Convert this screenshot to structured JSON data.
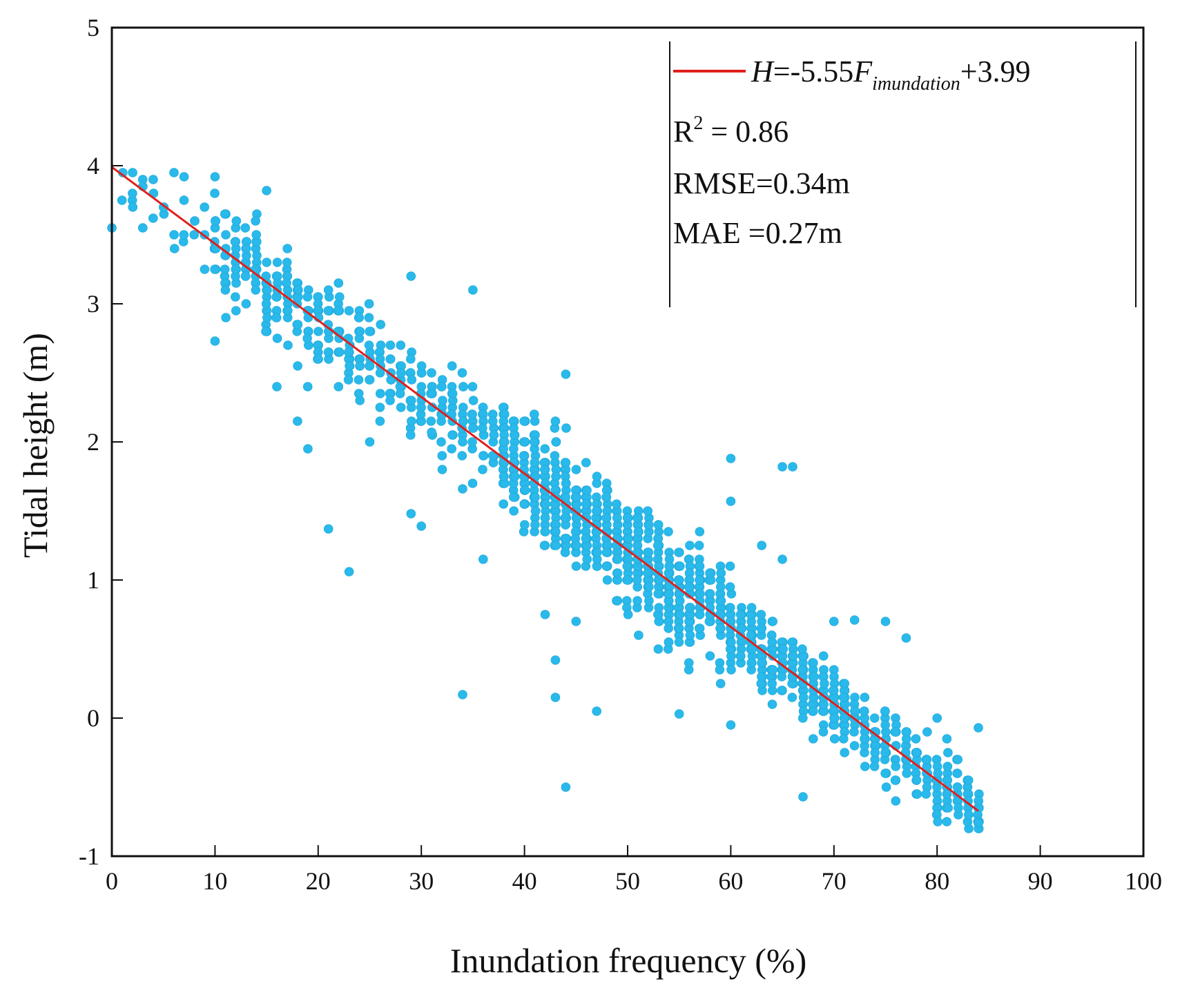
{
  "chart_data": {
    "type": "scatter",
    "xlabel": "Inundation frequency (%)",
    "ylabel": "Tidal height (m)",
    "xlim": [
      0,
      100
    ],
    "ylim": [
      -1,
      5
    ],
    "x_ticks": [
      0,
      10,
      20,
      30,
      40,
      50,
      60,
      70,
      80,
      90,
      100
    ],
    "y_ticks": [
      -1,
      0,
      1,
      2,
      3,
      4,
      5
    ],
    "x_tick_labels": [
      "0",
      "10",
      "20",
      "30",
      "40",
      "50",
      "60",
      "70",
      "80",
      "90",
      "100"
    ],
    "y_tick_labels": [
      "-1",
      "0",
      "1",
      "2",
      "3",
      "4",
      "5"
    ],
    "grid": false,
    "legend_position": "top-right",
    "colors": {
      "points": "#29b9ea",
      "fit_line": "#e0201c",
      "axis": "#111111"
    },
    "fit_line": {
      "slope_per_percent": -0.0555,
      "intercept": 3.99,
      "x_range": [
        0,
        84
      ],
      "legend": {
        "H": "H",
        "equals_slope": "=-5.55",
        "F": "F",
        "subscript": "imundation",
        "plus_intercept": "+3.99"
      }
    },
    "stats": {
      "r2_label": "R",
      "r2_sup": "2",
      "r2_value": " = 0.86",
      "rmse": "RMSE=0.34m",
      "mae": "MAE =0.27m"
    },
    "outliers": [
      {
        "x": 21,
        "y": 1.37
      },
      {
        "x": 23,
        "y": 1.06
      },
      {
        "x": 29,
        "y": 1.48
      },
      {
        "x": 30,
        "y": 1.39
      },
      {
        "x": 34,
        "y": 1.66
      },
      {
        "x": 36,
        "y": 1.15
      },
      {
        "x": 34,
        "y": 0.17
      },
      {
        "x": 43,
        "y": 0.15
      },
      {
        "x": 43,
        "y": 0.42
      },
      {
        "x": 47,
        "y": 0.05
      },
      {
        "x": 44,
        "y": -0.5
      },
      {
        "x": 55,
        "y": 0.03
      },
      {
        "x": 60,
        "y": -0.05
      },
      {
        "x": 67,
        "y": -0.57
      },
      {
        "x": 84,
        "y": -0.07
      },
      {
        "x": 84,
        "y": -0.76
      },
      {
        "x": 19,
        "y": 1.95
      },
      {
        "x": 10,
        "y": 2.73
      },
      {
        "x": 35,
        "y": 3.1
      },
      {
        "x": 29,
        "y": 3.2
      },
      {
        "x": 44,
        "y": 2.49
      },
      {
        "x": 15,
        "y": 3.82
      },
      {
        "x": 7,
        "y": 3.92
      },
      {
        "x": 10,
        "y": 3.92
      },
      {
        "x": 0,
        "y": 3.55
      },
      {
        "x": 2,
        "y": 3.8
      },
      {
        "x": 4,
        "y": 3.62
      },
      {
        "x": 60,
        "y": 1.88
      },
      {
        "x": 65,
        "y": 1.82
      },
      {
        "x": 66,
        "y": 1.82
      },
      {
        "x": 60,
        "y": 1.57
      },
      {
        "x": 63,
        "y": 1.25
      },
      {
        "x": 65,
        "y": 1.15
      },
      {
        "x": 70,
        "y": 0.7
      },
      {
        "x": 72,
        "y": 0.71
      },
      {
        "x": 75,
        "y": 0.7
      },
      {
        "x": 77,
        "y": 0.58
      },
      {
        "x": 80,
        "y": 0.0
      },
      {
        "x": 42,
        "y": 0.75
      },
      {
        "x": 45,
        "y": 0.7
      },
      {
        "x": 33,
        "y": 2.05
      },
      {
        "x": 31,
        "y": 2.07
      },
      {
        "x": 25,
        "y": 2.0
      },
      {
        "x": 18,
        "y": 2.15
      },
      {
        "x": 16,
        "y": 2.4
      }
    ],
    "n_points_approx": 2300
  }
}
